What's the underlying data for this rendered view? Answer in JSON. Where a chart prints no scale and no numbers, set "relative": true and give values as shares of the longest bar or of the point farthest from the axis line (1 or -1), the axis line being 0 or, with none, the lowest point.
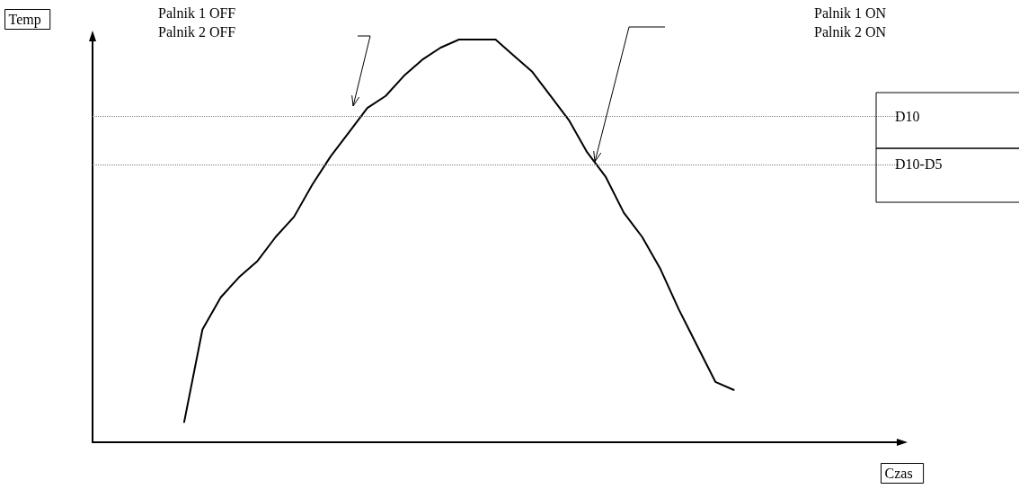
{
  "chart_data": {
    "type": "line",
    "relative": true,
    "xlabel": "Czas",
    "ylabel": "Temp",
    "categories": [
      null,
      null,
      null,
      null,
      null,
      null,
      null,
      null,
      null,
      null,
      null,
      null,
      null,
      null,
      null,
      null,
      null,
      null,
      null,
      null,
      null,
      null,
      null,
      null,
      null,
      null,
      null,
      null,
      null,
      null,
      null,
      null,
      null,
      null,
      null,
      null,
      null,
      null,
      null,
      null,
      null,
      null,
      null,
      null,
      null
    ],
    "series": [
      {
        "color": "#000000",
        "values": [
          null,
          null,
          null,
          null,
          null,
          0.05,
          0.28,
          0.36,
          0.41,
          0.45,
          0.51,
          0.56,
          0.64,
          0.71,
          0.77,
          0.83,
          0.86,
          0.91,
          0.95,
          0.98,
          1,
          1,
          1,
          0.96,
          0.92,
          0.86,
          0.8,
          0.72,
          0.66,
          0.57,
          0.51,
          0.43,
          0.33,
          0.24,
          0.15,
          0.13,
          null,
          null,
          null,
          null,
          null,
          null,
          null,
          null,
          null
        ]
      }
    ],
    "ref_lines": [
      {
        "axis": "y",
        "value": 0.81,
        "label": "D10",
        "color": "#808080",
        "line_style": "dotted"
      },
      {
        "axis": "y",
        "value": 0.69,
        "label": "D10-D5",
        "color": "#808080",
        "line_style": "dotted"
      }
    ],
    "annotations": [
      "Palnik 1 OFF\nPalnik 2 OFF",
      "Palnik 1 ON\nPalnik 2 ON"
    ],
    "grid": false,
    "marker": "none",
    "line_style": "solid"
  }
}
